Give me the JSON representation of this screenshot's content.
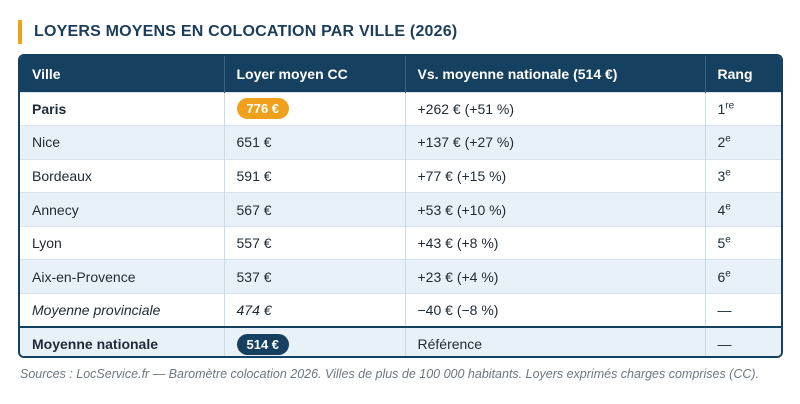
{
  "title": "LOYERS MOYENS EN COLOCATION PAR VILLE (2026)",
  "columns": [
    "Ville",
    "Loyer moyen CC",
    "Vs. moyenne nationale (514 €)",
    "Rang"
  ],
  "rows": [
    {
      "ville": "Paris",
      "loyer": "776 €",
      "vs": "+262 € (+51 %)",
      "rang_num": "1",
      "rang_sup": "re"
    },
    {
      "ville": "Nice",
      "loyer": "651 €",
      "vs": "+137 € (+27 %)",
      "rang_num": "2",
      "rang_sup": "e"
    },
    {
      "ville": "Bordeaux",
      "loyer": "591 €",
      "vs": "+77 € (+15 %)",
      "rang_num": "3",
      "rang_sup": "e"
    },
    {
      "ville": "Annecy",
      "loyer": "567 €",
      "vs": "+53 € (+10 %)",
      "rang_num": "4",
      "rang_sup": "e"
    },
    {
      "ville": "Lyon",
      "loyer": "557 €",
      "vs": "+43 € (+8 %)",
      "rang_num": "5",
      "rang_sup": "e"
    },
    {
      "ville": "Aix-en-Provence",
      "loyer": "537 €",
      "vs": "+23 € (+4 %)",
      "rang_num": "6",
      "rang_sup": "e"
    },
    {
      "ville": "Moyenne provinciale",
      "loyer": "474 €",
      "vs": "−40 € (−8 %)",
      "rang_num": "—",
      "rang_sup": ""
    },
    {
      "ville": "Moyenne nationale",
      "loyer": "514 €",
      "vs": "Référence",
      "rang_num": "—",
      "rang_sup": ""
    }
  ],
  "footer": "Sources : LocService.fr — Baromètre colocation 2026. Villes de plus de 100 000 habitants. Loyers exprimés charges comprises (CC).",
  "colors": {
    "navy": "#16405f",
    "accent": "#f0a11c",
    "stripe": "#e9f1f8"
  }
}
